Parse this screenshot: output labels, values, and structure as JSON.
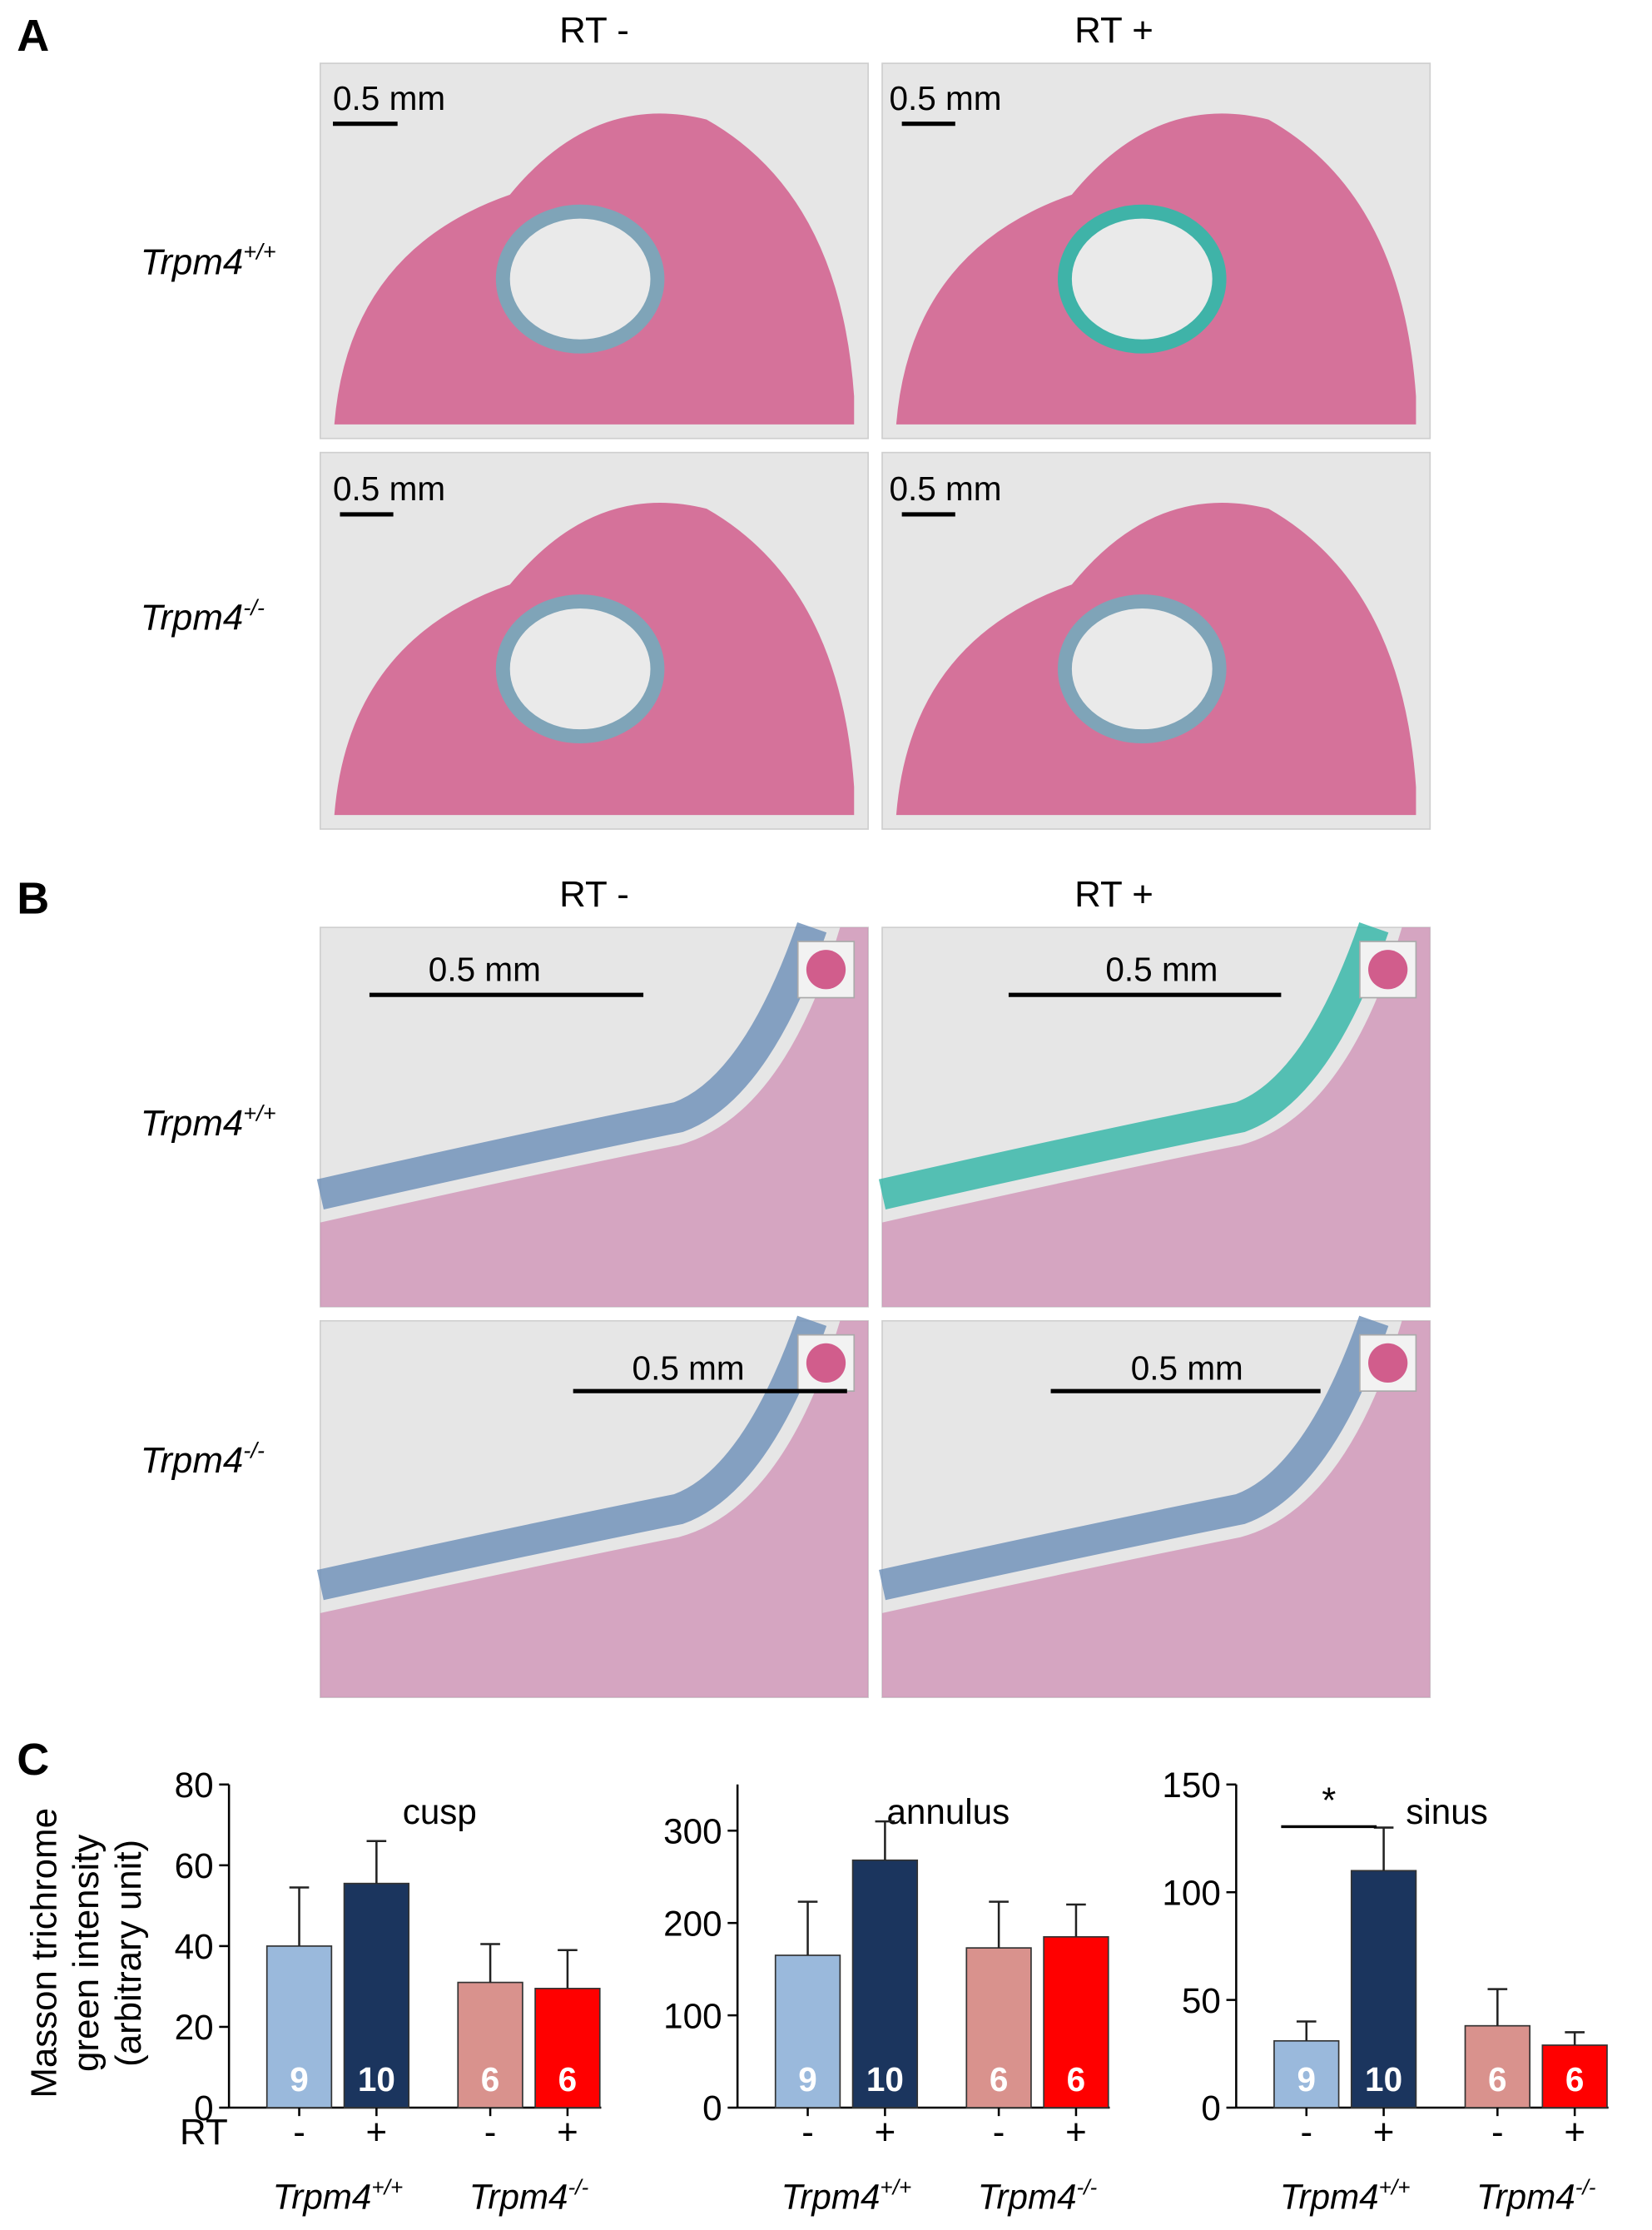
{
  "panels": [
    {
      "label": "A",
      "columns": [
        "RT -",
        "RT +"
      ],
      "rows": [
        {
          "base": "Trpm4",
          "sup": "+/+"
        },
        {
          "base": "Trpm4",
          "sup": "-/-"
        }
      ],
      "scale_bars": [
        "0.5 mm",
        "0.5 mm",
        "0.5 mm",
        "0.5 mm"
      ]
    },
    {
      "label": "B",
      "columns": [
        "RT -",
        "RT +"
      ],
      "rows": [
        {
          "base": "Trpm4",
          "sup": "+/+"
        },
        {
          "base": "Trpm4",
          "sup": "-/-"
        }
      ],
      "scale_bars": [
        "0.5 mm",
        "0.5 mm",
        "0.5 mm",
        "0.5 mm"
      ]
    }
  ],
  "panel_c_label": "C",
  "chart_data": [
    {
      "type": "bar",
      "title": "cusp",
      "y_label": [
        "Masson trichrome",
        "green intensity",
        "(arbitrary unit)"
      ],
      "x_label": "RT",
      "categories": [
        "-",
        "+",
        "-",
        "+"
      ],
      "groups": [
        {
          "base": "Trpm4",
          "sup": "+/+"
        },
        {
          "base": "Trpm4",
          "sup": "-/-"
        }
      ],
      "values": [
        40,
        55.5,
        31,
        29.5
      ],
      "errors": [
        14.5,
        10.5,
        9.5,
        9.5
      ],
      "n": [
        9,
        10,
        6,
        6
      ],
      "colors": [
        "#9ab9dc",
        "#1b355e",
        "#d9928d",
        "#ff0000"
      ],
      "ylim": [
        0,
        80
      ],
      "yticks": [
        0,
        20,
        40,
        60,
        80
      ]
    },
    {
      "type": "bar",
      "title": "annulus",
      "categories": [
        "-",
        "+",
        "-",
        "+"
      ],
      "groups": [
        {
          "base": "Trpm4",
          "sup": "+/+"
        },
        {
          "base": "Trpm4",
          "sup": "-/-"
        }
      ],
      "values": [
        165,
        268,
        173,
        185
      ],
      "errors": [
        58,
        42,
        50,
        35
      ],
      "n": [
        9,
        10,
        6,
        6
      ],
      "colors": [
        "#9ab9dc",
        "#1b355e",
        "#d9928d",
        "#ff0000"
      ],
      "ylim": [
        0,
        350
      ],
      "yticks": [
        0,
        100,
        200,
        300
      ]
    },
    {
      "type": "bar",
      "title": "sinus",
      "categories": [
        "-",
        "+",
        "-",
        "+"
      ],
      "groups": [
        {
          "base": "Trpm4",
          "sup": "+/+"
        },
        {
          "base": "Trpm4",
          "sup": "-/-"
        }
      ],
      "values": [
        31,
        110,
        38,
        29
      ],
      "errors": [
        9,
        20,
        17,
        6
      ],
      "n": [
        9,
        10,
        6,
        6
      ],
      "colors": [
        "#9ab9dc",
        "#1b355e",
        "#d9928d",
        "#ff0000"
      ],
      "significance": {
        "label": "*",
        "from": 0,
        "to": 1
      },
      "ylim": [
        0,
        150
      ],
      "yticks": [
        0,
        50,
        100,
        150
      ]
    }
  ]
}
